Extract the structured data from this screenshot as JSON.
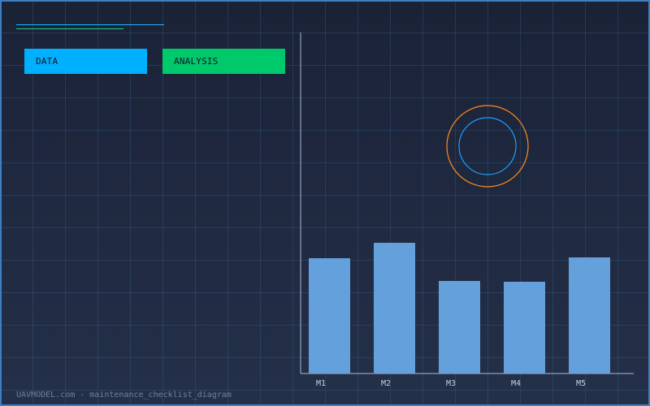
{
  "buttons": {
    "data_label": "DATA",
    "analysis_label": "ANALYSIS"
  },
  "colors": {
    "data_button": "#00b0ff",
    "analysis_button": "#00c96b",
    "bars": "#64a0dc",
    "outer_ring": "#ff8a1f",
    "inner_ring": "#1ea0ff",
    "accent_line": "#22b6ff",
    "accent_line_alt": "#22d08a"
  },
  "chart_data": {
    "type": "bar",
    "categories": [
      "M1",
      "M2",
      "M3",
      "M4",
      "M5"
    ],
    "values": [
      142,
      161,
      114,
      113,
      143
    ],
    "ylim": [
      0,
      420
    ],
    "grid": true,
    "legend": "none",
    "title": "",
    "xlabel": "",
    "ylabel": ""
  },
  "footer": {
    "text": "UAVMODEL.com - maintenance_checklist_diagram"
  }
}
